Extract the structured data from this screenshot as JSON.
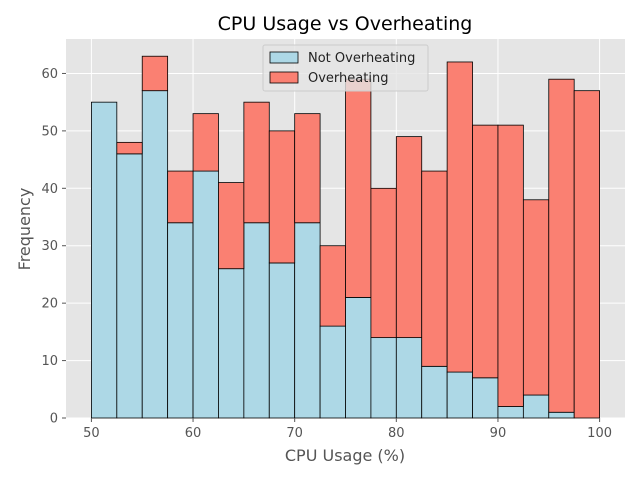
{
  "chart_data": {
    "type": "bar",
    "stacked": true,
    "title": "CPU Usage vs Overheating",
    "xlabel": "CPU Usage (%)",
    "ylabel": "Frequency",
    "xlim": [
      47.5,
      102.5
    ],
    "ylim": [
      0,
      66
    ],
    "xticks": [
      50,
      60,
      70,
      80,
      90,
      100
    ],
    "yticks": [
      0,
      10,
      20,
      30,
      40,
      50,
      60
    ],
    "bin_edges": [
      50,
      52.5,
      55,
      57.5,
      60,
      62.5,
      65,
      67.5,
      70,
      72.5,
      75,
      77.5,
      80,
      82.5,
      85,
      87.5,
      90,
      92.5,
      95,
      97.5,
      100
    ],
    "grid": true,
    "legend_position": "top-center",
    "series": [
      {
        "name": "Not Overheating",
        "color": "#add8e6",
        "values": [
          55,
          46,
          57,
          34,
          43,
          26,
          34,
          27,
          34,
          16,
          21,
          14,
          14,
          9,
          8,
          7,
          2,
          4,
          1,
          0
        ]
      },
      {
        "name": "Overheating",
        "color": "#fa8072",
        "values": [
          0,
          2,
          6,
          9,
          10,
          15,
          21,
          23,
          19,
          14,
          38,
          26,
          35,
          34,
          54,
          44,
          49,
          34,
          58,
          57
        ]
      }
    ]
  }
}
